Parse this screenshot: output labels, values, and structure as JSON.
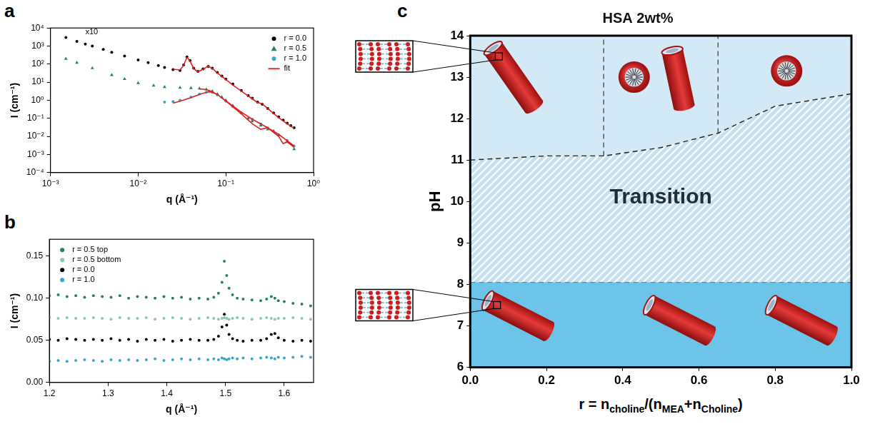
{
  "chart_data": [
    {
      "panel": "a",
      "type": "scatter",
      "x_label": "q (Å⁻¹)",
      "y_label": "I (cm⁻¹)",
      "log": true,
      "grid": false,
      "legend": "upper right",
      "xlim": [
        0.001,
        1
      ],
      "xticks": [
        {
          "value": 0.001,
          "label": "10⁻³"
        },
        {
          "value": 0.01,
          "label": "10⁻²"
        },
        {
          "value": 0.1,
          "label": "10⁻¹"
        },
        {
          "value": 1,
          "label": "10⁰"
        }
      ],
      "ylim": [
        0.0001,
        10000
      ],
      "yticks": [
        {
          "value": 0.0001,
          "label": "10⁻⁴"
        },
        {
          "value": 0.001,
          "label": "10⁻³"
        },
        {
          "value": 0.01,
          "label": "10⁻²"
        },
        {
          "value": 0.1,
          "label": "10⁻¹"
        },
        {
          "value": 1,
          "label": "10⁰"
        },
        {
          "value": 10,
          "label": "10¹"
        },
        {
          "value": 100,
          "label": "10²"
        },
        {
          "value": 1000,
          "label": "10³"
        },
        {
          "value": 10000,
          "label": "10⁴"
        }
      ],
      "annotations": [
        {
          "text": "x10",
          "x": 0.0025,
          "y": 3500
        }
      ],
      "series": [
        {
          "name": "r = 0.0",
          "color": "#000000",
          "marker": "circle",
          "x": [
            0.0015,
            0.002,
            0.0025,
            0.003,
            0.004,
            0.005,
            0.007,
            0.01,
            0.013,
            0.017,
            0.02,
            0.025,
            0.03,
            0.033,
            0.036,
            0.039,
            0.043,
            0.048,
            0.055,
            0.063,
            0.07,
            0.08,
            0.09,
            0.1,
            0.12,
            0.15,
            0.18,
            0.2,
            0.23,
            0.26,
            0.3,
            0.35,
            0.4,
            0.45,
            0.5,
            0.55,
            0.6
          ],
          "values": [
            3000,
            1800,
            1300,
            1000,
            650,
            450,
            280,
            170,
            120,
            85,
            65,
            50,
            45,
            90,
            250,
            160,
            60,
            40,
            55,
            75,
            60,
            35,
            22,
            15,
            8,
            3.5,
            1.8,
            1.3,
            0.8,
            0.6,
            0.35,
            0.2,
            0.12,
            0.08,
            0.055,
            0.04,
            0.03
          ]
        },
        {
          "name": "r = 0.5",
          "color": "#2a7d6c",
          "marker": "triangle",
          "x": [
            0.0015,
            0.002,
            0.003,
            0.005,
            0.007,
            0.01,
            0.015,
            0.02,
            0.03,
            0.04,
            0.05,
            0.06,
            0.07,
            0.08,
            0.09,
            0.1,
            0.12,
            0.15,
            0.18,
            0.2,
            0.25,
            0.3,
            0.35,
            0.4,
            0.5,
            0.6
          ],
          "values": [
            200,
            120,
            60,
            25,
            15,
            9,
            6.5,
            5.5,
            5,
            4.8,
            4.5,
            4,
            3.2,
            2.2,
            1.5,
            1.0,
            0.5,
            0.2,
            0.1,
            0.07,
            0.04,
            0.025,
            0.02,
            0.012,
            0.005,
            0.002
          ]
        },
        {
          "name": "r = 1.0",
          "color": "#36a9c6",
          "marker": "circle",
          "x": [
            0.02,
            0.025,
            0.03,
            0.04,
            0.05,
            0.06,
            0.065,
            0.07,
            0.08,
            0.1,
            0.12,
            0.15,
            0.2,
            0.25,
            0.3,
            0.4,
            0.5,
            0.6
          ],
          "values": [
            0.8,
            0.85,
            1.0,
            1.5,
            2.2,
            2.8,
            3.0,
            2.8,
            2.0,
            0.9,
            0.45,
            0.2,
            0.09,
            0.05,
            0.03,
            0.012,
            0.006,
            0.003
          ]
        },
        {
          "name": "fit",
          "color": "#e3211c",
          "marker": "none",
          "line_style": "solid",
          "x": [
            0.025,
            0.03,
            0.033,
            0.036,
            0.039,
            0.043,
            0.048,
            0.055,
            0.063,
            0.07,
            0.08,
            0.1,
            0.12,
            0.15,
            0.2,
            0.23,
            0.26,
            0.3,
            0.4,
            0.5,
            0.6,
            0.6,
            0.025,
            0.03,
            0.04,
            0.05,
            0.065,
            0.08,
            0.1,
            0.15,
            0.2,
            0.3,
            0.4,
            0.6,
            0.6,
            0.05,
            0.06,
            0.07,
            0.08,
            0.1,
            0.15,
            0.2,
            0.25,
            0.3,
            0.4,
            0.45,
            0.5,
            0.6
          ],
          "values": [
            52,
            48,
            85,
            240,
            150,
            55,
            38,
            52,
            78,
            58,
            33,
            14,
            7,
            3.2,
            1.2,
            0.75,
            0.65,
            0.35,
            0.11,
            0.05,
            0.028,
            null,
            0.7,
            0.9,
            1.4,
            2.1,
            3.1,
            2.1,
            0.95,
            0.22,
            0.09,
            0.03,
            0.013,
            0.003,
            null,
            4.3,
            3.9,
            3.0,
            2.1,
            0.9,
            0.18,
            0.05,
            0.025,
            0.03,
            0.01,
            0.004,
            0.005,
            0.0025
          ]
        }
      ]
    },
    {
      "panel": "b",
      "type": "scatter",
      "x_label": "q (Å⁻¹)",
      "y_label": "I (cm⁻¹)",
      "grid": false,
      "legend": "upper left",
      "xlim": [
        1.2,
        1.65
      ],
      "xticks": [
        1.2,
        1.3,
        1.4,
        1.5,
        1.6
      ],
      "ylim": [
        0,
        0.17
      ],
      "yticks": [
        {
          "value": 0,
          "label": "0.00"
        },
        0.05,
        {
          "value": 0.1,
          "label": "0.10"
        },
        0.15
      ],
      "x": [
        1.2,
        1.215,
        1.23,
        1.245,
        1.26,
        1.275,
        1.29,
        1.305,
        1.32,
        1.335,
        1.35,
        1.365,
        1.38,
        1.395,
        1.41,
        1.425,
        1.44,
        1.455,
        1.47,
        1.48,
        1.488,
        1.494,
        1.498,
        1.502,
        1.506,
        1.512,
        1.52,
        1.53,
        1.545,
        1.56,
        1.57,
        1.578,
        1.584,
        1.59,
        1.6,
        1.615,
        1.63,
        1.645
      ],
      "series": [
        {
          "name": "r = 0.5 top",
          "color": "#2a7d6c",
          "marker": "circle",
          "values": [
            0.103,
            0.104,
            0.102,
            0.103,
            0.101,
            0.103,
            0.102,
            0.101,
            0.103,
            0.1,
            0.102,
            0.101,
            0.1,
            0.102,
            0.1,
            0.101,
            0.099,
            0.1,
            0.099,
            0.101,
            0.106,
            0.119,
            0.144,
            0.127,
            0.112,
            0.104,
            0.1,
            0.099,
            0.098,
            0.097,
            0.099,
            0.102,
            0.1,
            0.097,
            0.096,
            0.094,
            0.093,
            0.091
          ]
        },
        {
          "name": "r = 0.5 bottom",
          "color": "#8cc7b0",
          "marker": "circle",
          "values": [
            0.077,
            0.076,
            0.077,
            0.076,
            0.076,
            0.077,
            0.076,
            0.075,
            0.077,
            0.076,
            0.076,
            0.077,
            0.075,
            0.076,
            0.077,
            0.076,
            0.075,
            0.076,
            0.077,
            0.076,
            0.075,
            0.076,
            0.077,
            0.076,
            0.075,
            0.076,
            0.077,
            0.076,
            0.075,
            0.076,
            0.077,
            0.076,
            0.075,
            0.076,
            0.076,
            0.077,
            0.076,
            0.075
          ]
        },
        {
          "name": "r = 0.0",
          "color": "#000000",
          "marker": "circle",
          "values": [
            0.051,
            0.05,
            0.052,
            0.051,
            0.05,
            0.051,
            0.05,
            0.052,
            0.05,
            0.051,
            0.049,
            0.051,
            0.05,
            0.051,
            0.049,
            0.05,
            0.051,
            0.05,
            0.05,
            0.051,
            0.055,
            0.066,
            0.081,
            0.068,
            0.057,
            0.052,
            0.05,
            0.049,
            0.05,
            0.05,
            0.052,
            0.057,
            0.058,
            0.053,
            0.05,
            0.049,
            0.05,
            0.049
          ]
        },
        {
          "name": "r = 1.0",
          "color": "#36a9c6",
          "marker": "circle",
          "values": [
            0.025,
            0.026,
            0.025,
            0.026,
            0.027,
            0.026,
            0.025,
            0.027,
            0.026,
            0.027,
            0.026,
            0.027,
            0.028,
            0.026,
            0.027,
            0.028,
            0.027,
            0.028,
            0.027,
            0.028,
            0.027,
            0.029,
            0.028,
            0.027,
            0.028,
            0.029,
            0.028,
            0.029,
            0.028,
            0.029,
            0.03,
            0.029,
            0.028,
            0.03,
            0.029,
            0.03,
            0.031,
            0.03
          ]
        }
      ]
    },
    {
      "panel": "c",
      "type": "line",
      "title": "HSA 2wt%",
      "y_label": "pH",
      "x_label": [
        "r = n",
        {
          "sub": "choline"
        },
        "/(n",
        {
          "sub": "MEA"
        },
        "+n",
        {
          "sub": "Choline"
        },
        ")"
      ],
      "grid": false,
      "xlim": [
        0,
        1
      ],
      "xticks": [
        {
          "value": 0,
          "label": "0.0"
        },
        0.2,
        0.4,
        0.6,
        0.8,
        {
          "value": 1,
          "label": "1.0"
        }
      ],
      "ylim": [
        6,
        14
      ],
      "yticks": [
        6,
        7,
        8,
        9,
        10,
        11,
        12,
        13,
        14
      ],
      "series": [
        {
          "x": [
            0,
            1
          ],
          "values": [
            8.05,
            8.05
          ],
          "color": "#6cc4e8",
          "line_style": "dashed"
        },
        {
          "x": [
            0,
            0.2,
            0.35,
            0.5,
            0.65,
            0.8,
            1
          ],
          "values": [
            11.0,
            11.1,
            11.1,
            11.3,
            11.65,
            12.3,
            12.6
          ],
          "color": "#d3e9f5",
          "line_style": "dashed"
        }
      ],
      "dividers": [
        {
          "x": [
            0.35,
            0.35
          ],
          "values": [
            11.1,
            14
          ],
          "line_style": "dashed"
        },
        {
          "x": [
            0.65,
            0.65
          ],
          "values": [
            11.65,
            14
          ],
          "line_style": "dashed"
        }
      ],
      "annotations": [
        {
          "text": "Transition",
          "x": 0.5,
          "y": 10.1
        }
      ]
    }
  ]
}
